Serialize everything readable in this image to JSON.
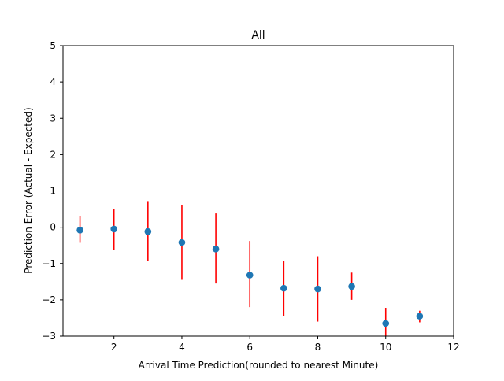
{
  "chart_data": {
    "type": "scatter",
    "title": "All",
    "xlabel": "Arrival Time Prediction(rounded to nearest Minute)",
    "ylabel": "Prediction Error (Actual - Expected)",
    "xlim": [
      0.5,
      12
    ],
    "ylim": [
      -3,
      5
    ],
    "xticks": [
      2,
      4,
      6,
      8,
      10,
      12
    ],
    "yticks": [
      -3,
      -2,
      -1,
      0,
      1,
      2,
      3,
      4,
      5
    ],
    "grid": false,
    "legend": "none",
    "series": [
      {
        "x": [
          1,
          2,
          3,
          4,
          5,
          6,
          7,
          8,
          9,
          10,
          11
        ],
        "y": [
          -0.08,
          -0.05,
          -0.12,
          -0.42,
          -0.6,
          -1.32,
          -1.68,
          -1.7,
          -1.63,
          -2.65,
          -2.45
        ],
        "err_low": [
          -0.43,
          -0.62,
          -0.93,
          -1.45,
          -1.55,
          -2.2,
          -2.45,
          -2.6,
          -2.0,
          -3.0,
          -2.62
        ],
        "err_high": [
          0.3,
          0.5,
          0.72,
          0.62,
          0.38,
          -0.38,
          -0.92,
          -0.8,
          -1.25,
          -2.22,
          -2.3
        ],
        "marker_color": "#1f77b4",
        "errorbar_color": "#ff0000"
      }
    ]
  }
}
